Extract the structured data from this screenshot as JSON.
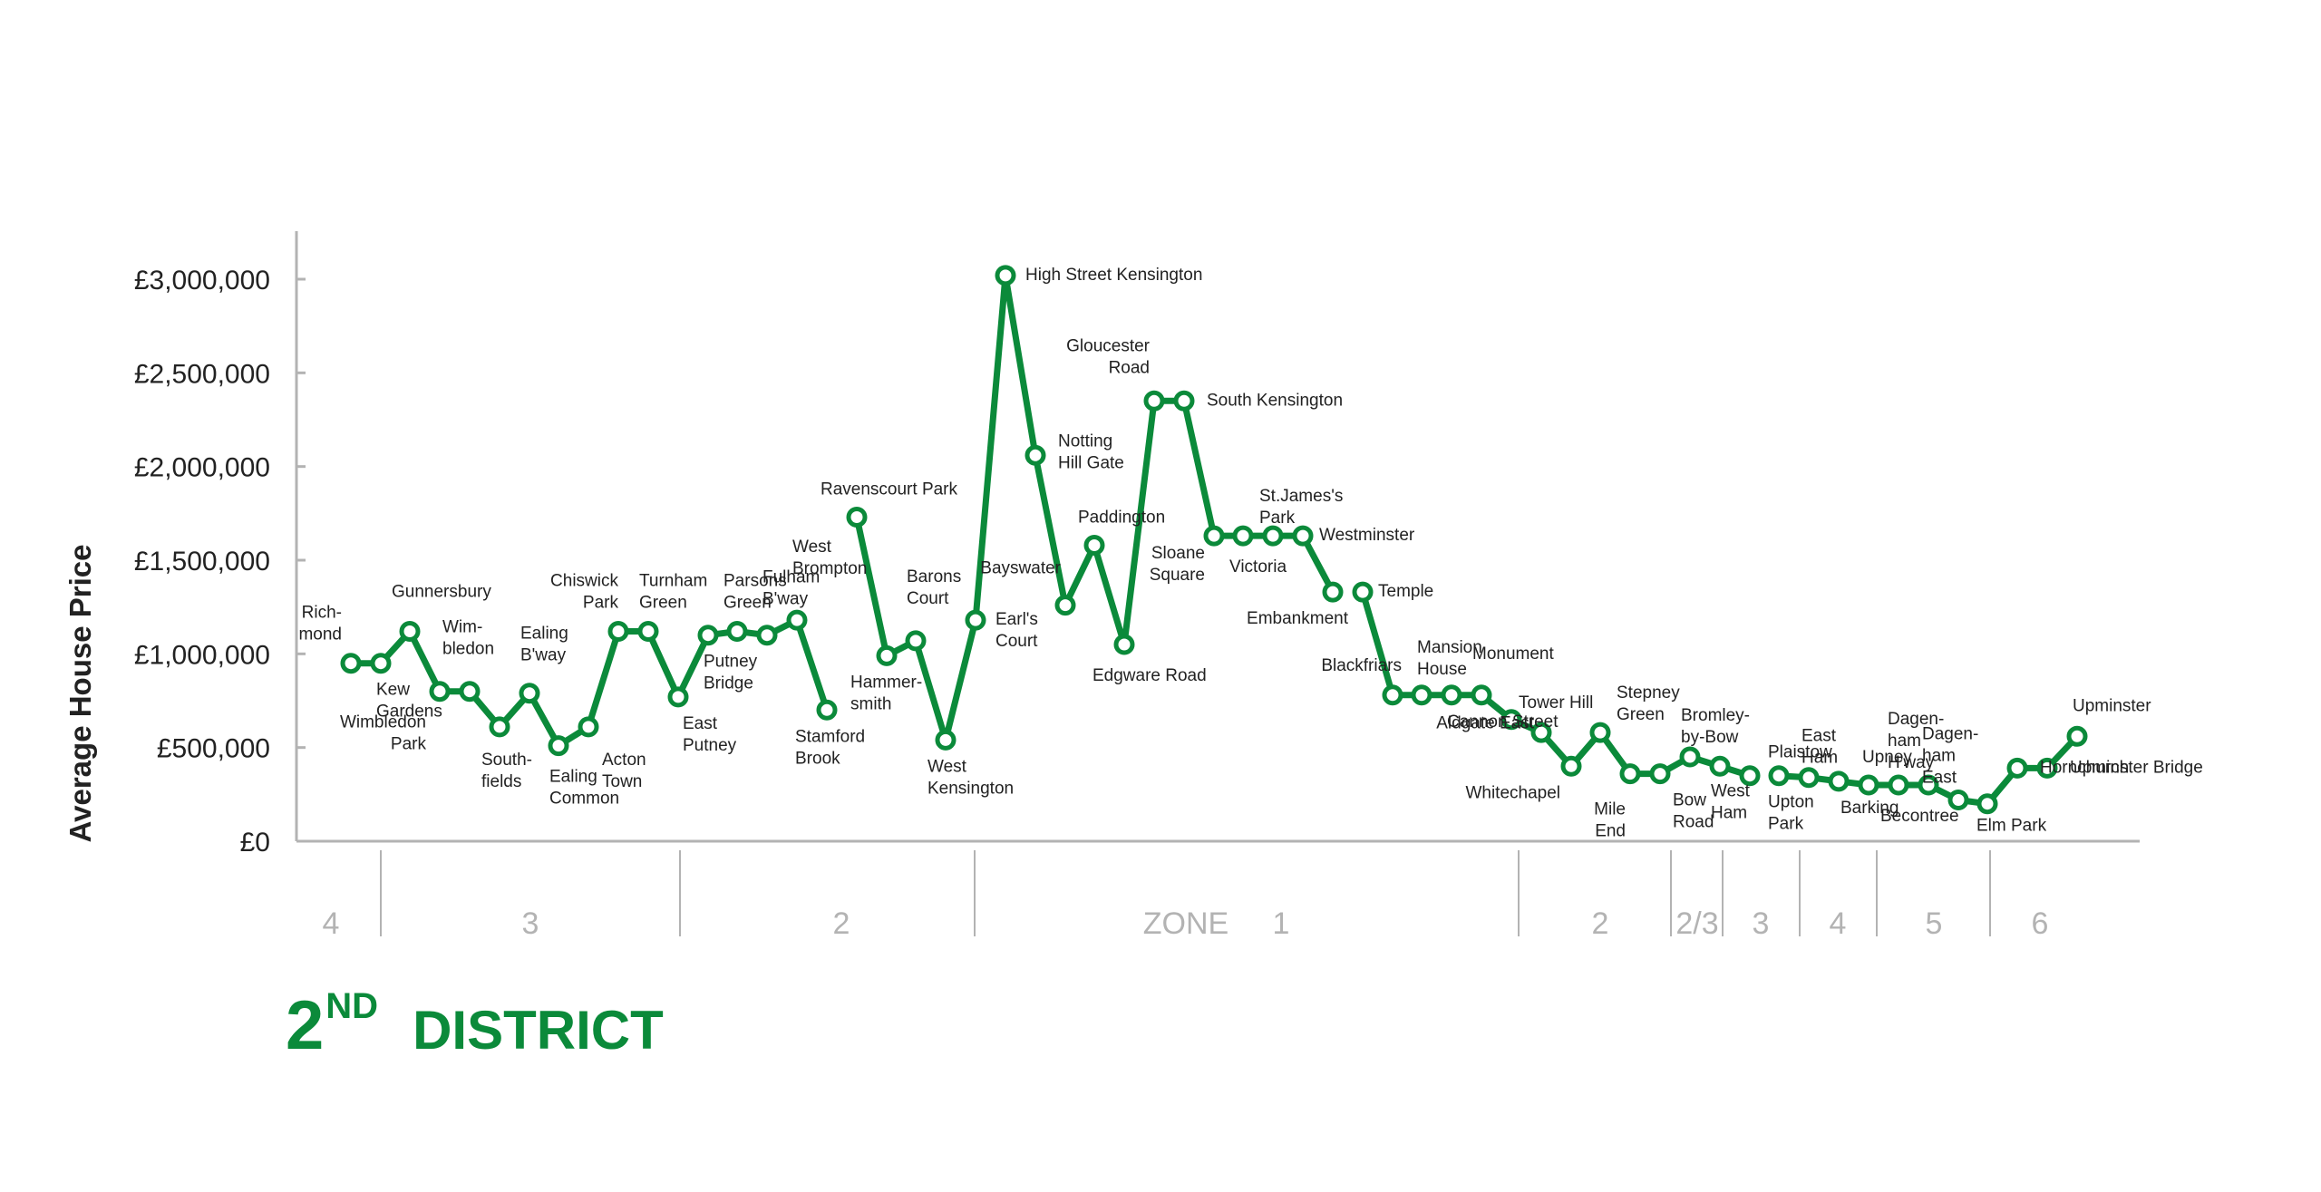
{
  "title": {
    "number": "2",
    "suffix": "ND",
    "word": "DISTRICT"
  },
  "colors": {
    "line": "#0b8a3a",
    "axis": "#b3b3b3",
    "zone_text": "#b3b3b3",
    "text": "#222222"
  },
  "chart_data": {
    "type": "line",
    "ylabel": "Average House Price",
    "ylim": [
      0,
      3000000
    ],
    "yticks": [
      {
        "value": 0,
        "label": "£0"
      },
      {
        "value": 500000,
        "label": "£500,000"
      },
      {
        "value": 1000000,
        "label": "£1,000,000"
      },
      {
        "value": 1500000,
        "label": "£1,500,000"
      },
      {
        "value": 2000000,
        "label": "£2,000,000"
      },
      {
        "value": 2500000,
        "label": "£2,500,000"
      },
      {
        "value": 3000000,
        "label": "£3,000,000"
      }
    ],
    "grid": false,
    "gaps_after_index": [
      16,
      33,
      47
    ],
    "stations": [
      {
        "label": [
          "Rich-",
          "mond"
        ],
        "value": 950000
      },
      {
        "label": [
          "Kew",
          "Gardens"
        ],
        "value": 950000
      },
      {
        "label": [
          "Gunnersbury"
        ],
        "value": 1120000
      },
      {
        "label": [
          "Wimbledon",
          "Park"
        ],
        "value": 800000
      },
      {
        "label": [
          "Wim-",
          "bledon"
        ],
        "value": 800000
      },
      {
        "label": [
          "South-",
          "fields"
        ],
        "value": 610000
      },
      {
        "label": [
          "Ealing",
          "B'way"
        ],
        "value": 790000
      },
      {
        "label": [
          "Ealing",
          "Common"
        ],
        "value": 510000
      },
      {
        "label": [
          "Acton",
          "Town"
        ],
        "value": 610000
      },
      {
        "label": [
          "Chiswick",
          "Park"
        ],
        "value": 1120000
      },
      {
        "label": [
          "Turnham",
          "Green"
        ],
        "value": 1120000
      },
      {
        "label": [
          "East",
          "Putney"
        ],
        "value": 770000
      },
      {
        "label": [
          "Putney",
          "Bridge"
        ],
        "value": 1100000
      },
      {
        "label": [
          "Parsons",
          "Green"
        ],
        "value": 1120000
      },
      {
        "label": [
          "Fulham",
          "B'way"
        ],
        "value": 1100000
      },
      {
        "label": [
          "West",
          "Brompton"
        ],
        "value": 1180000
      },
      {
        "label": [
          "Stamford",
          "Brook"
        ],
        "value": 700000
      },
      {
        "label": [
          "Ravenscourt Park"
        ],
        "value": 1730000
      },
      {
        "label": [
          "Hammer-",
          "smith"
        ],
        "value": 990000
      },
      {
        "label": [
          "Barons",
          "Court"
        ],
        "value": 1070000
      },
      {
        "label": [
          "West",
          "Kensington"
        ],
        "value": 540000
      },
      {
        "label": [
          "Earl's",
          "Court"
        ],
        "value": 1180000
      },
      {
        "label": [
          "High Street Kensington"
        ],
        "value": 3020000
      },
      {
        "label": [
          "Notting",
          "Hill Gate"
        ],
        "value": 2060000
      },
      {
        "label": [
          "Bayswater"
        ],
        "value": 1260000
      },
      {
        "label": [
          "Paddington"
        ],
        "value": 1580000
      },
      {
        "label": [
          "Edgware Road"
        ],
        "value": 1050000
      },
      {
        "label": [
          "Gloucester",
          "Road"
        ],
        "value": 2350000
      },
      {
        "label": [
          "South Kensington"
        ],
        "value": 2350000
      },
      {
        "label": [
          "Sloane",
          "Square"
        ],
        "value": 1630000
      },
      {
        "label": [
          "Victoria"
        ],
        "value": 1630000
      },
      {
        "label": [
          "St.James's",
          "Park"
        ],
        "value": 1630000
      },
      {
        "label": [
          "Westminster"
        ],
        "value": 1630000
      },
      {
        "label": [
          "Embankment"
        ],
        "value": 1330000
      },
      {
        "label": [
          "Temple"
        ],
        "value": 1330000
      },
      {
        "label": [
          "Blackfriars"
        ],
        "value": 780000
      },
      {
        "label": [
          "Mansion",
          "House"
        ],
        "value": 780000
      },
      {
        "label": [
          "Cannon Street"
        ],
        "value": 780000
      },
      {
        "label": [
          "Monument"
        ],
        "value": 780000
      },
      {
        "label": [
          "Aldgate East"
        ],
        "value": 650000
      },
      {
        "label": [
          "Tower Hill"
        ],
        "value": 580000
      },
      {
        "label": [
          "Whitechapel"
        ],
        "value": 400000
      },
      {
        "label": [
          "Stepney",
          "Green"
        ],
        "value": 580000
      },
      {
        "label": [
          "Mile",
          "End"
        ],
        "value": 360000
      },
      {
        "label": [
          "Bow",
          "Road"
        ],
        "value": 360000
      },
      {
        "label": [
          "Bromley-",
          "by-Bow"
        ],
        "value": 450000
      },
      {
        "label": [
          "West",
          "Ham"
        ],
        "value": 400000
      },
      {
        "label": [
          "Plaistow"
        ],
        "value": 350000
      },
      {
        "label": [
          "Upton",
          "Park"
        ],
        "value": 350000
      },
      {
        "label": [
          "East",
          "Ham"
        ],
        "value": 340000
      },
      {
        "label": [
          "Barking"
        ],
        "value": 320000
      },
      {
        "label": [
          "Upney"
        ],
        "value": 300000
      },
      {
        "label": [
          "Becontree"
        ],
        "value": 300000
      },
      {
        "label": [
          "Dagen-",
          "ham",
          "H'way"
        ],
        "value": 300000
      },
      {
        "label": [
          "Dagen-",
          "ham",
          "East"
        ],
        "value": 220000
      },
      {
        "label": [
          "Elm Park"
        ],
        "value": 200000
      },
      {
        "label": [
          "Hornchurch"
        ],
        "value": 390000
      },
      {
        "label": [
          "Upminster Bridge"
        ],
        "value": 390000
      },
      {
        "label": [
          "Upminster"
        ],
        "value": 560000
      }
    ],
    "zones": [
      {
        "label": "4"
      },
      {
        "label": "3"
      },
      {
        "label": "2"
      },
      {
        "label": "ZONE"
      },
      {
        "label": "1"
      },
      {
        "label": "2"
      },
      {
        "label": "2/3"
      },
      {
        "label": "3"
      },
      {
        "label": "4"
      },
      {
        "label": "5"
      },
      {
        "label": "6"
      }
    ]
  }
}
